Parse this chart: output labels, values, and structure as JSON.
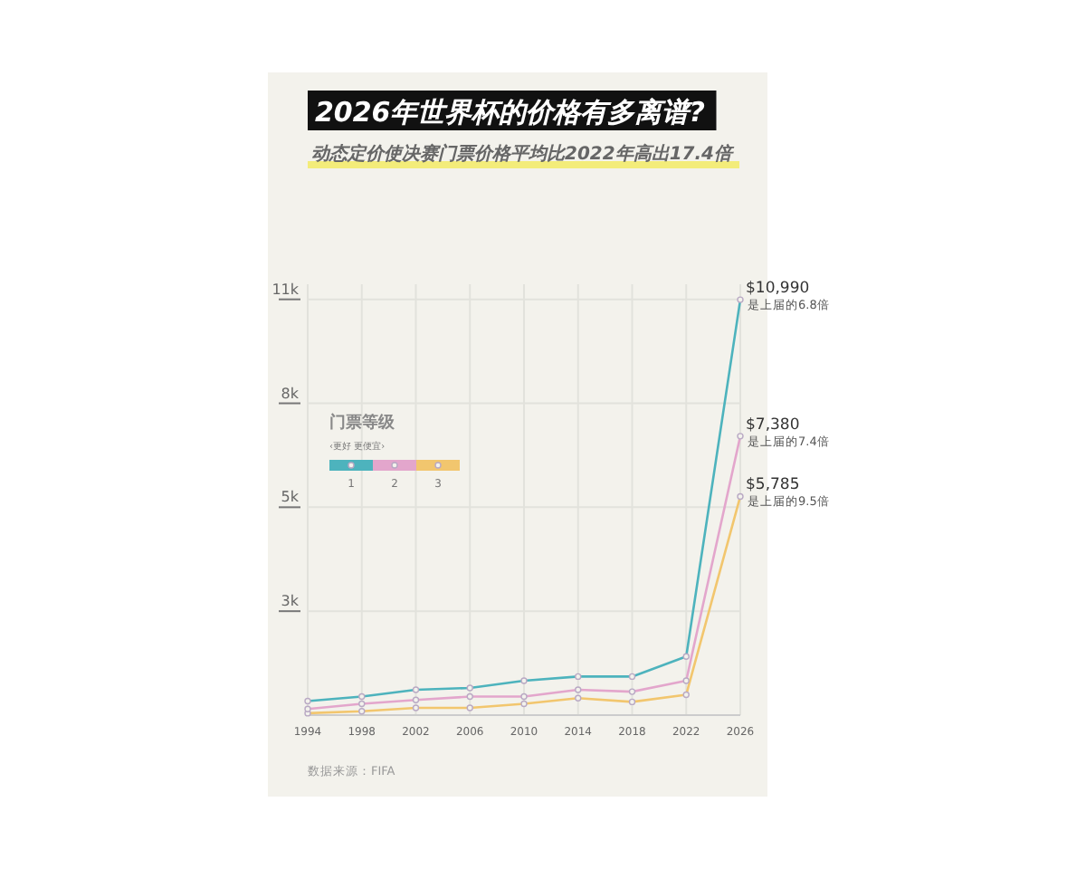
{
  "chart_data": {
    "type": "line",
    "title": "2026年世界杯的价格有多离谱?",
    "subtitle": "动态定价使决赛门票价格平均比2022年高出17.4倍",
    "legend_title": "门票等级",
    "legend": "top left",
    "grid": true,
    "marker": "circle",
    "line_style": "solid",
    "x": [
      1994,
      1998,
      2002,
      2006,
      2010,
      2014,
      2018,
      2022,
      2026
    ],
    "xlim": [
      1994,
      2026
    ],
    "xticks": [
      1994,
      1998,
      2002,
      2006,
      2010,
      2014,
      2018,
      2022,
      2026
    ],
    "ylim": [
      0,
      11400
    ],
    "yticks": [
      {
        "value": 2750,
        "label": "3k"
      },
      {
        "value": 5500,
        "label": "5k"
      },
      {
        "value": 8250,
        "label": "8k"
      },
      {
        "value": 11000,
        "label": "11k"
      }
    ],
    "series": [
      {
        "name": "1",
        "color": "#4db3bd",
        "values": [
          370,
          490,
          670,
          720,
          910,
          1020,
          1020,
          1550,
          10990
        ],
        "value_labels": [
          null,
          null,
          null,
          null,
          null,
          null,
          null,
          null,
          "$10,990"
        ]
      },
      {
        "name": "2",
        "color": "#e3a6cc",
        "values": [
          160,
          300,
          400,
          490,
          490,
          670,
          620,
          910,
          7380
        ],
        "value_labels": [
          null,
          null,
          null,
          null,
          null,
          null,
          null,
          null,
          "$7,380"
        ]
      },
      {
        "name": "3",
        "color": "#f2c66e",
        "values": [
          50,
          100,
          190,
          190,
          300,
          450,
          350,
          540,
          5785
        ],
        "value_labels": [
          null,
          null,
          null,
          null,
          null,
          null,
          null,
          null,
          "$5,785"
        ]
      }
    ],
    "annotations": [
      "是上届的6.8倍",
      "是上届的7.4倍",
      "是上届的9.5倍",
      "‹更好  更便宜›",
      "数据来源：FIFA"
    ]
  }
}
